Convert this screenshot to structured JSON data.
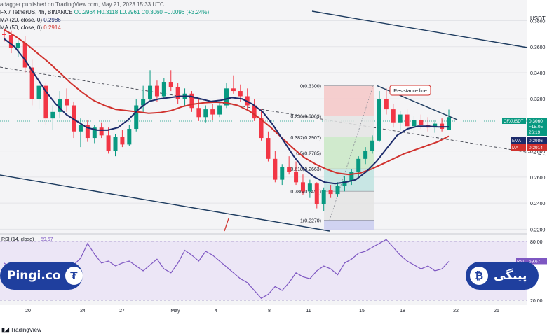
{
  "header": {
    "publisher": "adagger published on TradingView.com, May 21, 2023 15:33 UTC",
    "symbol": "FX / TetherUS, 4h, BINANCE",
    "ohlc": "O0.2964 H0.3118 L0.2961 C0.3060 +0.0096 (+3.24%)",
    "ema_label": "MA (20, close, 0)",
    "ema_value": "0.2986",
    "ma_label": "MA (50, close, 0)",
    "ma_value": "0.2914",
    "currency": "USDT"
  },
  "colors": {
    "up": "#089981",
    "down": "#f23645",
    "ema": "#1c2b6b",
    "ma": "#d0312d",
    "rsi": "#7e57c2",
    "fib_red": "#f4c7c7",
    "fib_green": "#c9e7c5",
    "fib_teal": "#bfe3e0",
    "fib_blue": "#c9cdf0"
  },
  "chart_data": {
    "type": "candlestick",
    "price_axis_ticks": [
      "0.3800",
      "0.3600",
      "0.3400",
      "0.3200",
      "0.3000",
      "0.2800",
      "0.2600",
      "0.2400",
      "0.2200"
    ],
    "ylim": [
      0.2175,
      0.3905
    ],
    "date_axis_ticks": [
      "20",
      "24",
      "27",
      "May",
      "4",
      "8",
      "11",
      "15",
      "18",
      "22",
      "25"
    ],
    "candles": [
      [
        0.37,
        0.374,
        0.364,
        0.369
      ],
      [
        0.369,
        0.372,
        0.355,
        0.359
      ],
      [
        0.359,
        0.365,
        0.352,
        0.363
      ],
      [
        0.363,
        0.368,
        0.34,
        0.344
      ],
      [
        0.344,
        0.35,
        0.315,
        0.32
      ],
      [
        0.32,
        0.334,
        0.312,
        0.33
      ],
      [
        0.33,
        0.332,
        0.3,
        0.305
      ],
      [
        0.305,
        0.315,
        0.296,
        0.31
      ],
      [
        0.31,
        0.326,
        0.305,
        0.32
      ],
      [
        0.32,
        0.328,
        0.31,
        0.315
      ],
      [
        0.315,
        0.318,
        0.29,
        0.295
      ],
      [
        0.295,
        0.305,
        0.283,
        0.3
      ],
      [
        0.3,
        0.304,
        0.287,
        0.29
      ],
      [
        0.29,
        0.3,
        0.286,
        0.298
      ],
      [
        0.298,
        0.302,
        0.29,
        0.292
      ],
      [
        0.292,
        0.298,
        0.278,
        0.28
      ],
      [
        0.28,
        0.293,
        0.276,
        0.291
      ],
      [
        0.291,
        0.296,
        0.283,
        0.285
      ],
      [
        0.285,
        0.3,
        0.284,
        0.297
      ],
      [
        0.297,
        0.32,
        0.295,
        0.315
      ],
      [
        0.315,
        0.33,
        0.31,
        0.32
      ],
      [
        0.32,
        0.342,
        0.318,
        0.33
      ],
      [
        0.33,
        0.334,
        0.318,
        0.322
      ],
      [
        0.322,
        0.336,
        0.32,
        0.333
      ],
      [
        0.333,
        0.342,
        0.326,
        0.329
      ],
      [
        0.329,
        0.332,
        0.316,
        0.32
      ],
      [
        0.32,
        0.328,
        0.315,
        0.324
      ],
      [
        0.324,
        0.326,
        0.31,
        0.313
      ],
      [
        0.313,
        0.32,
        0.303,
        0.306
      ],
      [
        0.306,
        0.315,
        0.302,
        0.312
      ],
      [
        0.312,
        0.316,
        0.304,
        0.308
      ],
      [
        0.308,
        0.318,
        0.306,
        0.315
      ],
      [
        0.315,
        0.332,
        0.313,
        0.328
      ],
      [
        0.328,
        0.338,
        0.324,
        0.326
      ],
      [
        0.326,
        0.331,
        0.318,
        0.322
      ],
      [
        0.322,
        0.328,
        0.312,
        0.315
      ],
      [
        0.315,
        0.32,
        0.303,
        0.305
      ],
      [
        0.305,
        0.312,
        0.288,
        0.29
      ],
      [
        0.29,
        0.295,
        0.272,
        0.274
      ],
      [
        0.274,
        0.28,
        0.256,
        0.258
      ],
      [
        0.258,
        0.27,
        0.254,
        0.268
      ],
      [
        0.268,
        0.276,
        0.262,
        0.264
      ],
      [
        0.264,
        0.272,
        0.254,
        0.256
      ],
      [
        0.256,
        0.262,
        0.246,
        0.249
      ],
      [
        0.249,
        0.258,
        0.244,
        0.255
      ],
      [
        0.255,
        0.256,
        0.236,
        0.239
      ],
      [
        0.239,
        0.252,
        0.234,
        0.25
      ],
      [
        0.25,
        0.254,
        0.244,
        0.247
      ],
      [
        0.247,
        0.256,
        0.245,
        0.253
      ],
      [
        0.253,
        0.261,
        0.249,
        0.257
      ],
      [
        0.257,
        0.266,
        0.254,
        0.264
      ],
      [
        0.264,
        0.276,
        0.261,
        0.274
      ],
      [
        0.274,
        0.283,
        0.27,
        0.28
      ],
      [
        0.28,
        0.292,
        0.278,
        0.288
      ],
      [
        0.288,
        0.326,
        0.287,
        0.32
      ],
      [
        0.32,
        0.328,
        0.308,
        0.312
      ],
      [
        0.312,
        0.316,
        0.298,
        0.302
      ],
      [
        0.302,
        0.311,
        0.296,
        0.308
      ],
      [
        0.308,
        0.312,
        0.297,
        0.299
      ],
      [
        0.299,
        0.307,
        0.294,
        0.304
      ],
      [
        0.304,
        0.308,
        0.297,
        0.3
      ],
      [
        0.3,
        0.306,
        0.295,
        0.298
      ],
      [
        0.298,
        0.304,
        0.294,
        0.301
      ],
      [
        0.301,
        0.305,
        0.295,
        0.297
      ],
      [
        0.2964,
        0.3118,
        0.2961,
        0.306
      ]
    ],
    "ema20": [
      0.366,
      0.36,
      0.35,
      0.338,
      0.326,
      0.316,
      0.308,
      0.303,
      0.298,
      0.296,
      0.296,
      0.298,
      0.304,
      0.312,
      0.318,
      0.32,
      0.321,
      0.322,
      0.322,
      0.32,
      0.318,
      0.319,
      0.321,
      0.32,
      0.316,
      0.31,
      0.3,
      0.288,
      0.276,
      0.266,
      0.26,
      0.256,
      0.255,
      0.256,
      0.258,
      0.264,
      0.272,
      0.282,
      0.292,
      0.297,
      0.299,
      0.299,
      0.2985,
      0.2986
    ],
    "ma50": [
      0.373,
      0.368,
      0.362,
      0.355,
      0.348,
      0.34,
      0.332,
      0.325,
      0.319,
      0.315,
      0.312,
      0.311,
      0.31,
      0.309,
      0.3095,
      0.311,
      0.314,
      0.316,
      0.317,
      0.3175,
      0.317,
      0.315,
      0.311,
      0.305,
      0.298,
      0.29,
      0.282,
      0.275,
      0.27,
      0.266,
      0.263,
      0.262,
      0.263,
      0.266,
      0.27,
      0.274,
      0.278,
      0.281,
      0.284,
      0.287,
      0.2914
    ],
    "fibonacci": [
      {
        "label": "0(0.3300)",
        "level": 0.33
      },
      {
        "label": "0.236(0.3069)",
        "level": 0.3069
      },
      {
        "label": "0.382(0.2907)",
        "level": 0.2907
      },
      {
        "label": "0.5(0.2785)",
        "level": 0.2785
      },
      {
        "label": "0.618(0.2663)",
        "level": 0.2663
      },
      {
        "label": "0.786(0.2491)",
        "level": 0.2491
      },
      {
        "label": "1(0.2270)",
        "level": 0.227
      }
    ],
    "annotation": "Resistance line",
    "price_badge": {
      "symbol": "CFXUSDT",
      "price": "0.3060",
      "change": "−15.05",
      "countdown": "26:19"
    },
    "ema_badge": {
      "label": "EMA",
      "value": "0.2986"
    },
    "ma_badge": {
      "label": "MA",
      "value": "0.2914"
    },
    "rsi": {
      "label": "RSI (14, close)",
      "value": "59.67",
      "axis_ticks": [
        "80.00",
        "20.00"
      ],
      "ylim": [
        15,
        85
      ],
      "values": [
        58,
        52,
        46,
        40,
        36,
        42,
        38,
        45,
        50,
        48,
        56,
        63,
        78,
        67,
        58,
        60,
        55,
        58,
        60,
        55,
        50,
        56,
        62,
        52,
        48,
        58,
        71,
        66,
        60,
        70,
        66,
        60,
        54,
        48,
        42,
        38,
        30,
        22,
        26,
        34,
        30,
        38,
        48,
        44,
        42,
        50,
        55,
        52,
        46,
        58,
        62,
        68,
        70,
        74,
        78,
        82,
        74,
        66,
        60,
        56,
        52,
        55,
        50,
        52,
        59.67
      ]
    }
  },
  "banner": {
    "left_brand": "Pingi.co",
    "right_brand": "پینگی"
  },
  "footer": {
    "logo_text": "TradingView"
  }
}
